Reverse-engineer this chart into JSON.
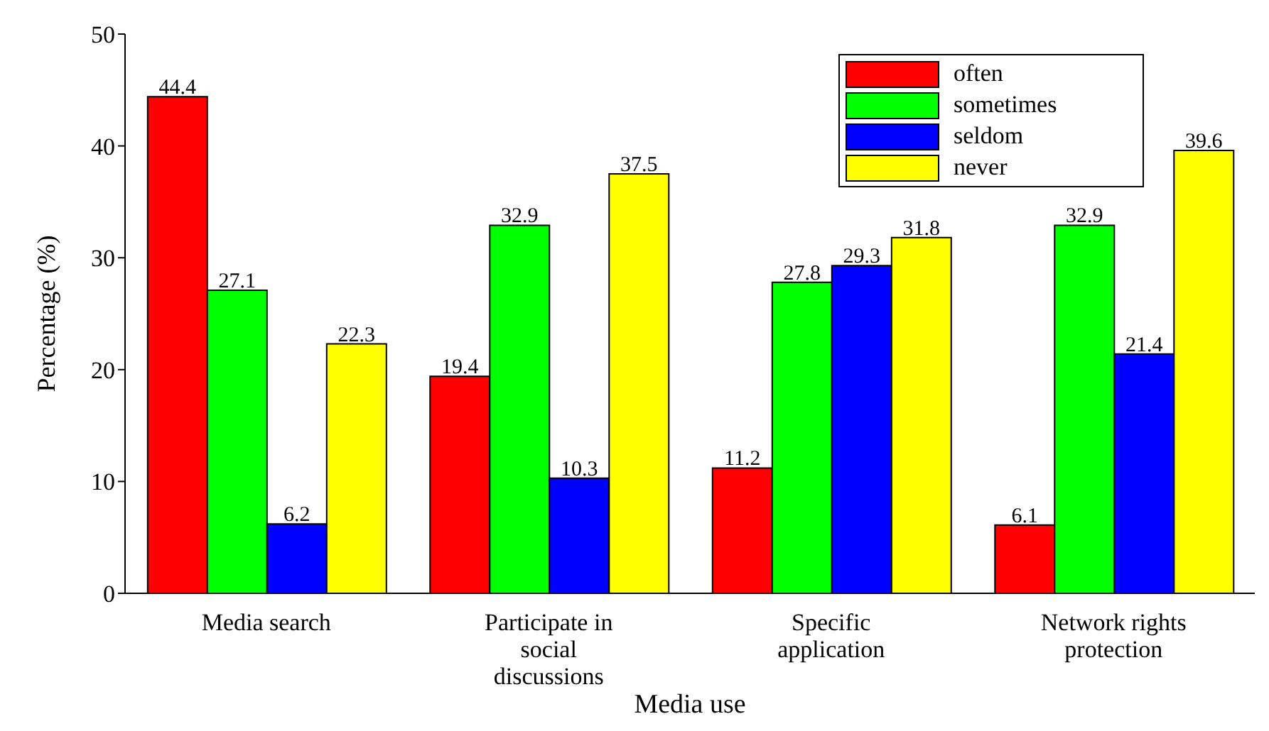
{
  "chart_data": {
    "type": "bar",
    "xlabel": "Media use",
    "ylabel": "Percentage (%)",
    "categories": [
      "Media search",
      "Participate in social discussions",
      "Specific application",
      "Network rights protection"
    ],
    "series": [
      {
        "name": "often",
        "color": "#ff0000",
        "values": [
          44.4,
          19.4,
          11.2,
          6.1
        ]
      },
      {
        "name": "sometimes",
        "color": "#00ff00",
        "values": [
          27.1,
          32.9,
          27.8,
          32.9
        ]
      },
      {
        "name": "seldom",
        "color": "#0000ff",
        "values": [
          6.2,
          10.3,
          29.3,
          21.4
        ]
      },
      {
        "name": "never",
        "color": "#ffff00",
        "values": [
          22.3,
          37.5,
          31.8,
          39.6
        ]
      }
    ],
    "ylim": [
      0,
      50
    ],
    "yticks": [
      0,
      10,
      20,
      30,
      40,
      50
    ],
    "grid": false,
    "legend": "top right",
    "data_labels": true
  }
}
